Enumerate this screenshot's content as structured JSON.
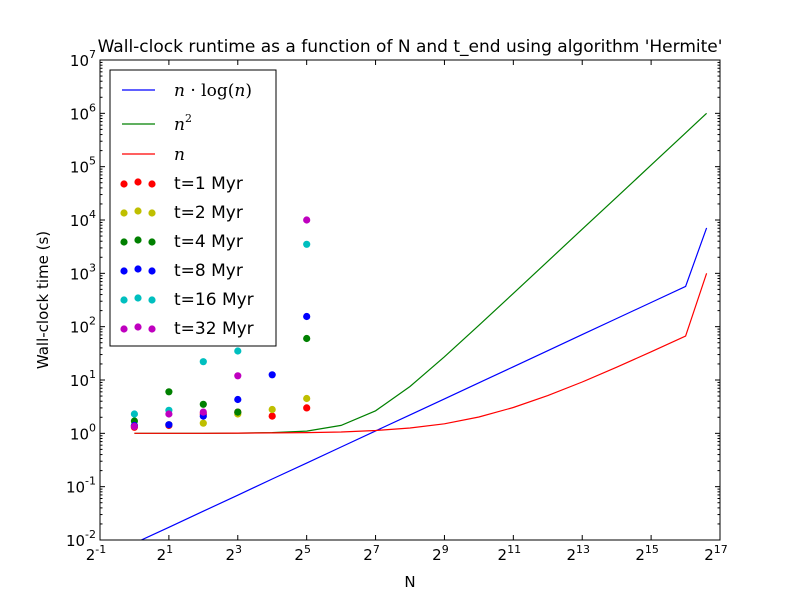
{
  "chart_data": {
    "type": "line",
    "title": "Wall-clock runtime as a function of N and t_end using algorithm 'Hermite'",
    "xlabel": "N",
    "ylabel": "Wall-clock time (s)",
    "x_scale": "log2",
    "y_scale": "log10",
    "xlim": [
      0.5,
      131072
    ],
    "ylim": [
      0.01,
      10000000
    ],
    "x_ticks": [
      {
        "base": "2",
        "exp": "-1",
        "value": 0.5
      },
      {
        "base": "2",
        "exp": "1",
        "value": 2
      },
      {
        "base": "2",
        "exp": "3",
        "value": 8
      },
      {
        "base": "2",
        "exp": "5",
        "value": 32
      },
      {
        "base": "2",
        "exp": "7",
        "value": 128
      },
      {
        "base": "2",
        "exp": "9",
        "value": 512
      },
      {
        "base": "2",
        "exp": "11",
        "value": 2048
      },
      {
        "base": "2",
        "exp": "13",
        "value": 8192
      },
      {
        "base": "2",
        "exp": "15",
        "value": 32768
      },
      {
        "base": "2",
        "exp": "17",
        "value": 131072
      }
    ],
    "y_ticks": [
      {
        "base": "10",
        "exp": "-2",
        "value": 0.01
      },
      {
        "base": "10",
        "exp": "-1",
        "value": 0.1
      },
      {
        "base": "10",
        "exp": "0",
        "value": 1
      },
      {
        "base": "10",
        "exp": "1",
        "value": 10
      },
      {
        "base": "10",
        "exp": "2",
        "value": 100
      },
      {
        "base": "10",
        "exp": "3",
        "value": 1000
      },
      {
        "base": "10",
        "exp": "4",
        "value": 10000
      },
      {
        "base": "10",
        "exp": "5",
        "value": 100000
      },
      {
        "base": "10",
        "exp": "6",
        "value": 1000000
      },
      {
        "base": "10",
        "exp": "7",
        "value": 10000000
      }
    ],
    "legend_position": "top-left",
    "lines": [
      {
        "name": "n·log(n)",
        "color": "#0000ff",
        "x": [
          1,
          2,
          4,
          8,
          16,
          32,
          64,
          128,
          256,
          512,
          1024,
          2048,
          4096,
          8192,
          16384,
          32768,
          65536,
          100000
        ],
        "y": [
          0.0087,
          0.0173,
          0.0346,
          0.0693,
          0.139,
          0.277,
          0.554,
          1.11,
          2.22,
          4.43,
          8.87,
          17.7,
          35.5,
          70.9,
          142,
          284,
          568,
          7100
        ]
      },
      {
        "name": "n²",
        "color": "#008000",
        "x": [
          1,
          2,
          4,
          8,
          16,
          32,
          64,
          128,
          256,
          512,
          1024,
          2048,
          4096,
          8192,
          16384,
          32768,
          65536,
          100000
        ],
        "y": [
          1.0,
          1.0,
          1.0,
          1.01,
          1.03,
          1.1,
          1.41,
          2.64,
          7.55,
          27.2,
          106,
          420,
          1680,
          6710,
          26800,
          107000,
          429000,
          1000000
        ]
      },
      {
        "name": "n",
        "color": "#ff0000",
        "x": [
          1,
          2,
          4,
          8,
          16,
          32,
          64,
          128,
          256,
          512,
          1024,
          2048,
          4096,
          8192,
          16384,
          32768,
          65536,
          100000
        ],
        "y": [
          1.0,
          1.0,
          1.0,
          1.01,
          1.02,
          1.03,
          1.06,
          1.13,
          1.26,
          1.51,
          2.02,
          3.05,
          5.1,
          9.19,
          17.4,
          33.8,
          66.5,
          1000
        ]
      }
    ],
    "scatter": [
      {
        "name": "t=1 Myr",
        "color": "#ff0000",
        "points": [
          [
            1,
            1.3
          ],
          [
            2,
            1.4
          ],
          [
            4,
            2.3
          ],
          [
            8,
            2.5
          ],
          [
            16,
            2.1
          ],
          [
            32,
            3.0
          ]
        ]
      },
      {
        "name": "t=2 Myr",
        "color": "#bfbf00",
        "points": [
          [
            1,
            1.4
          ],
          [
            2,
            1.45
          ],
          [
            4,
            1.55
          ],
          [
            8,
            2.3
          ],
          [
            16,
            2.8
          ],
          [
            32,
            4.5
          ]
        ]
      },
      {
        "name": "t=4 Myr",
        "color": "#008000",
        "points": [
          [
            1,
            1.7
          ],
          [
            2,
            6.0
          ],
          [
            4,
            3.5
          ],
          [
            8,
            2.5
          ],
          [
            32,
            60
          ]
        ]
      },
      {
        "name": "t=8 Myr",
        "color": "#0000ff",
        "points": [
          [
            1,
            1.4
          ],
          [
            2,
            1.45
          ],
          [
            4,
            2.1
          ],
          [
            8,
            4.3
          ],
          [
            16,
            12.5
          ],
          [
            32,
            155
          ]
        ]
      },
      {
        "name": "t=16 Myr",
        "color": "#00bfbf",
        "points": [
          [
            1,
            2.3
          ],
          [
            2,
            2.7
          ],
          [
            4,
            22
          ],
          [
            8,
            35
          ],
          [
            32,
            3500
          ]
        ]
      },
      {
        "name": "t=32 Myr",
        "color": "#bf00bf",
        "points": [
          [
            1,
            1.35
          ],
          [
            2,
            2.3
          ],
          [
            4,
            2.5
          ],
          [
            8,
            12
          ],
          [
            32,
            10000
          ]
        ]
      }
    ]
  }
}
